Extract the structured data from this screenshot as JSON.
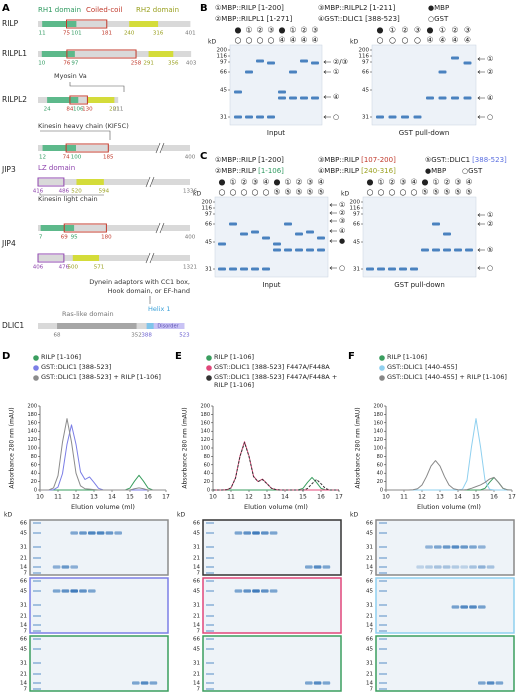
{
  "panel_labels": [
    "A",
    "B",
    "C",
    "D",
    "E",
    "F"
  ],
  "domains": [
    "RH1 domain",
    "Coiled-coil",
    "RH2 domain"
  ],
  "proteins": [
    {
      "name": "RILP",
      "numbers": [
        11,
        75,
        101,
        181,
        240,
        316,
        401
      ]
    },
    {
      "name": "RILPL1",
      "numbers": [
        10,
        76,
        97,
        258,
        291,
        356,
        403
      ]
    },
    {
      "name": "RILPL2",
      "numbers": [
        24,
        84,
        106,
        130,
        201,
        211
      ]
    },
    {
      "name": "JIP3",
      "numbers": [
        12,
        74,
        100,
        185,
        400,
        416,
        486,
        520,
        594,
        1336
      ]
    },
    {
      "name": "JIP4",
      "numbers": [
        7,
        69,
        95,
        180,
        400,
        406,
        476,
        500,
        571,
        1321
      ]
    },
    {
      "name": "DLIC1",
      "numbers": [
        68,
        352,
        388,
        523
      ]
    }
  ],
  "annotations": {
    "myosin": "Myosin Va",
    "khc": "Kinesin heavy chain (KIF5C)",
    "lz": "LZ domain",
    "klc": "Kinesin light chain",
    "dynein": [
      "Dynein adaptors with CC1 box,",
      "Hook domain, or EF-hand"
    ],
    "ras": "Ras-like domain",
    "helix": "Helix 1",
    "disorder": "Disorder"
  },
  "pulldowns": [
    {
      "legend": [
        {
          "label": "①MBP::RILP",
          "range": "[1-200]"
        },
        {
          "label": "②MBP::RILPL1",
          "range": "[1-271]"
        },
        {
          "label": "③MBP::RILPL2",
          "range": "[1-211]"
        },
        {
          "label": "④GST::DLIC1",
          "range": "[388-523]"
        },
        {
          "label": "●MBP"
        },
        {
          "label": "○GST"
        }
      ],
      "lanes": [
        [
          "●",
          "①",
          "②",
          "③",
          "●",
          "①",
          "②",
          "③"
        ],
        [
          "○",
          "○",
          "○",
          "○",
          "④",
          "④",
          "④",
          "④"
        ]
      ],
      "unit": "kD",
      "markers": [
        200,
        116,
        97,
        66,
        45,
        31
      ],
      "gels": [
        {
          "title": "Input",
          "bands": [
            "②/③",
            "①",
            "④",
            "○"
          ]
        },
        {
          "title": "GST pull-down",
          "bands": [
            "①",
            "②",
            "④",
            "○"
          ]
        }
      ]
    },
    {
      "legend": [
        {
          "label": "①MBP::RILP",
          "range": "[1-200]"
        },
        {
          "label": "②MBP::RILP",
          "range": "[1-106]"
        },
        {
          "label": "③MBP::RILP",
          "range": "[107-200]"
        },
        {
          "label": "④MBP::RILP",
          "range": "[240-316]"
        },
        {
          "label": "⑤GST::DLIC1",
          "range": "[388-523]"
        },
        {
          "label": "●MBP"
        },
        {
          "label": "○GST"
        }
      ],
      "lanes": [
        [
          "●",
          "①",
          "②",
          "③",
          "④",
          "●",
          "①",
          "②",
          "③",
          "④"
        ],
        [
          "○",
          "○",
          "○",
          "○",
          "○",
          "⑤",
          "⑤",
          "⑤",
          "⑤",
          "⑤"
        ]
      ],
      "unit": "kD",
      "markers": [
        200,
        116,
        97,
        66,
        45,
        31
      ],
      "gels": [
        {
          "title": "Input",
          "bands": [
            "①",
            "②",
            "③",
            "④",
            "●",
            "○"
          ]
        },
        {
          "title": "GST pull-down",
          "bands": [
            "①",
            "②",
            "⑤",
            "○"
          ]
        }
      ]
    }
  ],
  "sec_gels": {
    "unit": "kD",
    "markers": [
      66,
      45,
      31,
      21,
      14,
      7
    ]
  },
  "chart_data": [
    {
      "type": "line",
      "x_label": "Elution volume (ml)",
      "y_label": "Absorbance 280 nm (mAU)",
      "x": [
        10,
        10.25,
        10.5,
        10.75,
        11,
        11.25,
        11.5,
        11.75,
        12,
        12.25,
        12.5,
        12.75,
        13,
        13.25,
        13.5,
        13.75,
        14,
        14.25,
        14.5,
        14.75,
        15,
        15.25,
        15.5,
        15.75,
        16,
        16.25,
        16.5,
        16.75,
        17
      ],
      "xlim": [
        10,
        17
      ],
      "xticks": [
        10,
        11,
        12,
        13,
        14,
        15,
        16,
        17
      ],
      "ylim": [
        0,
        200
      ],
      "yticks": [
        0,
        20,
        40,
        60,
        80,
        100,
        120,
        140,
        160,
        180,
        200
      ],
      "series": [
        {
          "name": "RILP [1-106]",
          "color": "#3a9e5f",
          "values": [
            0,
            0,
            0,
            0,
            0,
            0,
            0,
            0,
            0,
            0,
            0,
            0,
            0,
            0,
            0,
            0,
            0,
            0,
            0,
            0.4,
            4.7,
            21,
            35,
            21,
            4.7,
            0.4,
            0,
            0,
            0
          ]
        },
        {
          "name": "GST::DLIC1 [388-523]",
          "color": "#7b7ee6",
          "values": [
            0,
            0,
            0,
            0.6,
            7,
            39,
            109,
            155,
            109,
            43,
            25,
            31,
            18,
            4,
            0.4,
            0,
            0,
            0,
            0,
            0,
            0,
            0,
            0,
            0,
            0,
            0,
            0,
            0,
            0
          ]
        },
        {
          "name": "GST::DLIC1 [388-523] + RILP [1-106]",
          "color": "#8c8c8c",
          "values": [
            0,
            0,
            0.3,
            5,
            34,
            114,
            170,
            114,
            40,
            10,
            3,
            2,
            1,
            0,
            0,
            0,
            0,
            0,
            0,
            0,
            0,
            3,
            5,
            3,
            0,
            0,
            0,
            0,
            0
          ]
        }
      ]
    },
    {
      "type": "line",
      "x_label": "Elution volume (ml)",
      "y_label": "Absorbance 280 nm (mAU)",
      "x": [
        10,
        10.25,
        10.5,
        10.75,
        11,
        11.25,
        11.5,
        11.75,
        12,
        12.25,
        12.5,
        12.75,
        13,
        13.25,
        13.5,
        13.75,
        14,
        14.25,
        14.5,
        14.75,
        15,
        15.25,
        15.5,
        15.75,
        16,
        16.25,
        16.5,
        16.75,
        17
      ],
      "xlim": [
        10,
        17
      ],
      "xticks": [
        10,
        11,
        12,
        13,
        14,
        15,
        16,
        17
      ],
      "ylim": [
        0,
        200
      ],
      "yticks": [
        0,
        20,
        40,
        60,
        80,
        100,
        120,
        140,
        160,
        180,
        200
      ],
      "series": [
        {
          "name": "RILP [1-106]",
          "color": "#3a9e5f",
          "values": [
            0,
            0,
            0,
            0,
            0,
            0,
            0,
            0,
            0,
            0,
            0,
            0,
            0,
            0,
            0,
            0,
            0,
            0,
            0,
            0.3,
            4,
            18,
            30,
            18,
            4,
            0.3,
            0,
            0,
            0
          ]
        },
        {
          "name": "GST::DLIC1 [388-523] F447A/F448A",
          "color": "#e0477a",
          "values": [
            0,
            0,
            0,
            0.5,
            5,
            29,
            81,
            115,
            81,
            33,
            20,
            26,
            15,
            4,
            1,
            0,
            0,
            0,
            0,
            0,
            0,
            0,
            0,
            0,
            0,
            0,
            0,
            0,
            0
          ]
        },
        {
          "name": "GST::DLIC1 [388-523] F447A/F448A + RILP [1-106]",
          "color": "#333333",
          "dash": true,
          "values": [
            0,
            0,
            0,
            0.5,
            5,
            28,
            80,
            113,
            80,
            32,
            20,
            25,
            15,
            4,
            1,
            0,
            0,
            0,
            0,
            0,
            0,
            3.4,
            15,
            25,
            15,
            3.4,
            0,
            0,
            0
          ]
        }
      ]
    },
    {
      "type": "line",
      "x_label": "Elution volume (ml)",
      "y_label": "Absorbance 280 nm (mAU)",
      "x": [
        10,
        10.25,
        10.5,
        10.75,
        11,
        11.25,
        11.5,
        11.75,
        12,
        12.25,
        12.5,
        12.75,
        13,
        13.25,
        13.5,
        13.75,
        14,
        14.25,
        14.5,
        14.75,
        15,
        15.25,
        15.5,
        15.75,
        16,
        16.25,
        16.5,
        16.75,
        17
      ],
      "xlim": [
        10,
        17
      ],
      "xticks": [
        10,
        11,
        12,
        13,
        14,
        15,
        16,
        17
      ],
      "ylim": [
        0,
        200
      ],
      "yticks": [
        0,
        20,
        40,
        60,
        80,
        100,
        120,
        140,
        160,
        180,
        200
      ],
      "series": [
        {
          "name": "RILP [1-106]",
          "color": "#3a9e5f",
          "values": [
            0,
            0,
            0,
            0,
            0,
            0,
            0,
            0,
            0,
            0,
            0,
            0,
            0,
            0,
            0,
            0,
            0,
            0,
            0,
            0,
            0,
            0.3,
            4,
            18,
            30,
            18,
            4,
            0.3,
            0
          ]
        },
        {
          "name": "GST::DLIC1 [440-455]",
          "color": "#8fd0ef",
          "values": [
            0,
            0,
            0,
            0,
            0,
            0,
            0,
            0,
            0,
            0,
            0,
            0,
            0,
            0,
            0,
            0,
            0,
            1.9,
            23,
            103,
            170,
            103,
            23,
            1.9,
            0,
            0,
            0,
            0,
            0
          ]
        },
        {
          "name": "GST::DLIC1 [440-455] + RILP [1-106]",
          "color": "#888888",
          "values": [
            0,
            0,
            0,
            0,
            0,
            0,
            0.5,
            3,
            12,
            32,
            57,
            70,
            57,
            32,
            12,
            3,
            0.5,
            0,
            1,
            4,
            8,
            12,
            18,
            26,
            30,
            18,
            4,
            0.3,
            0
          ]
        }
      ]
    }
  ]
}
